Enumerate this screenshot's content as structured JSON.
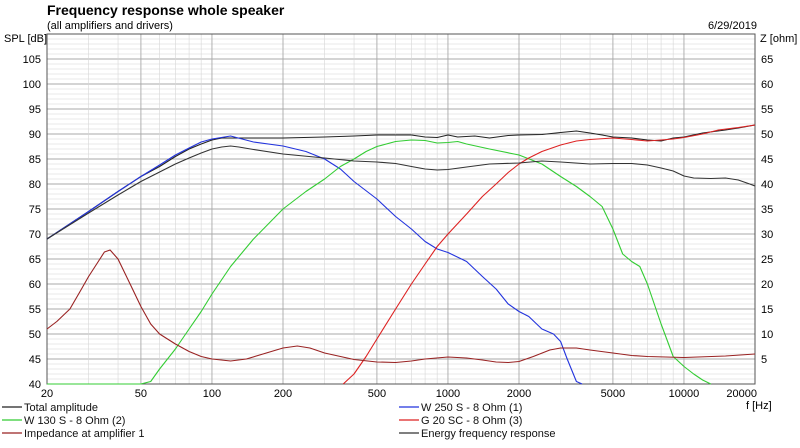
{
  "chart_data": {
    "type": "line",
    "title": "Frequency response whole speaker",
    "subtitle": "(all amplifiers and drivers)",
    "date": "6/29/2019",
    "ylabel_left": "SPL [dB]",
    "ylabel_right": "Z [ohm]",
    "xlabel": "f [Hz]",
    "x_scale": "log",
    "xlim": [
      20,
      20000
    ],
    "ylim_left": [
      40,
      110
    ],
    "ylim_right": [
      0,
      70
    ],
    "x_ticks": [
      20,
      50,
      100,
      200,
      500,
      1000,
      2000,
      5000,
      10000,
      20000
    ],
    "x_tick_labels": [
      "20",
      "50",
      "100",
      "200",
      "500",
      "1000",
      "2000",
      "5000",
      "10000",
      "20000"
    ],
    "y_left_ticks": [
      40,
      45,
      50,
      55,
      60,
      65,
      70,
      75,
      80,
      85,
      90,
      95,
      100,
      105
    ],
    "y_left_tick_labels": [
      "40",
      "45",
      "50",
      "55",
      "60",
      "65",
      "70",
      "75",
      "80",
      "85",
      "90",
      "95",
      "100",
      "105"
    ],
    "y_right_ticks": [
      5,
      10,
      15,
      20,
      25,
      30,
      35,
      40,
      45,
      50,
      55,
      60,
      65
    ],
    "y_right_tick_labels": [
      "5",
      "10",
      "15",
      "20",
      "25",
      "30",
      "35",
      "40",
      "45",
      "50",
      "55",
      "60",
      "65"
    ],
    "grid": true,
    "legend_position": "bottom",
    "series": [
      {
        "name": "Total amplitude",
        "color": "#222222",
        "axis": "left",
        "points": [
          [
            20,
            69
          ],
          [
            30,
            74.5
          ],
          [
            40,
            78.5
          ],
          [
            50,
            81.5
          ],
          [
            60,
            83.5
          ],
          [
            70,
            85.5
          ],
          [
            80,
            87
          ],
          [
            90,
            88
          ],
          [
            100,
            88.8
          ],
          [
            110,
            89.2
          ],
          [
            130,
            89.2
          ],
          [
            150,
            89.2
          ],
          [
            200,
            89.2
          ],
          [
            300,
            89.4
          ],
          [
            400,
            89.6
          ],
          [
            500,
            89.8
          ],
          [
            700,
            89.8
          ],
          [
            800,
            89.4
          ],
          [
            900,
            89.3
          ],
          [
            1000,
            89.8
          ],
          [
            1100,
            89.4
          ],
          [
            1300,
            89.6
          ],
          [
            1500,
            89.2
          ],
          [
            1800,
            89.7
          ],
          [
            2000,
            89.8
          ],
          [
            2500,
            89.9
          ],
          [
            3000,
            90.3
          ],
          [
            3500,
            90.6
          ],
          [
            4000,
            90.2
          ],
          [
            4500,
            89.8
          ],
          [
            5000,
            89.4
          ],
          [
            6000,
            89.2
          ],
          [
            7000,
            88.8
          ],
          [
            8000,
            88.6
          ],
          [
            9000,
            89.2
          ],
          [
            10000,
            89.4
          ],
          [
            12000,
            90.2
          ],
          [
            15000,
            90.8
          ],
          [
            17000,
            91.2
          ],
          [
            20000,
            91.8
          ]
        ]
      },
      {
        "name": "W 250 S - 8 Ohm  (1)",
        "color": "#2233dd",
        "axis": "left",
        "points": [
          [
            20,
            69
          ],
          [
            30,
            74.5
          ],
          [
            40,
            78.5
          ],
          [
            50,
            81.5
          ],
          [
            60,
            83.8
          ],
          [
            70,
            85.8
          ],
          [
            80,
            87.2
          ],
          [
            90,
            88.4
          ],
          [
            100,
            89
          ],
          [
            120,
            89.6
          ],
          [
            150,
            88.4
          ],
          [
            200,
            87.6
          ],
          [
            250,
            86.5
          ],
          [
            300,
            85
          ],
          [
            350,
            83
          ],
          [
            400,
            80.5
          ],
          [
            500,
            77
          ],
          [
            600,
            73.5
          ],
          [
            700,
            71
          ],
          [
            800,
            68.5
          ],
          [
            900,
            67
          ],
          [
            1000,
            66.3
          ],
          [
            1200,
            64.5
          ],
          [
            1400,
            61.5
          ],
          [
            1600,
            59
          ],
          [
            1800,
            56
          ],
          [
            2000,
            54.5
          ],
          [
            2200,
            53.5
          ],
          [
            2500,
            51
          ],
          [
            2800,
            50
          ],
          [
            3000,
            48.5
          ],
          [
            3200,
            45
          ],
          [
            3500,
            40.5
          ],
          [
            3700,
            40
          ]
        ]
      },
      {
        "name": "W 130 S - 8 Ohm (2)",
        "color": "#33cc33",
        "axis": "left",
        "points": [
          [
            20,
            40
          ],
          [
            50,
            40
          ],
          [
            55,
            40.5
          ],
          [
            60,
            43
          ],
          [
            70,
            47
          ],
          [
            80,
            51
          ],
          [
            90,
            54.5
          ],
          [
            100,
            58
          ],
          [
            120,
            63.5
          ],
          [
            150,
            69
          ],
          [
            200,
            75
          ],
          [
            250,
            78.5
          ],
          [
            300,
            81
          ],
          [
            350,
            83.5
          ],
          [
            400,
            85
          ],
          [
            450,
            86.5
          ],
          [
            500,
            87.5
          ],
          [
            600,
            88.5
          ],
          [
            700,
            88.8
          ],
          [
            800,
            88.7
          ],
          [
            900,
            88.2
          ],
          [
            1000,
            88.3
          ],
          [
            1100,
            88.5
          ],
          [
            1200,
            88
          ],
          [
            1500,
            87
          ],
          [
            2000,
            85.8
          ],
          [
            2500,
            84
          ],
          [
            3000,
            81.5
          ],
          [
            3500,
            79.5
          ],
          [
            4000,
            77.5
          ],
          [
            4500,
            75.5
          ],
          [
            5000,
            71
          ],
          [
            5500,
            66
          ],
          [
            6000,
            64.5
          ],
          [
            6500,
            63.5
          ],
          [
            7000,
            60
          ],
          [
            8000,
            52
          ],
          [
            9000,
            45.5
          ],
          [
            10000,
            43.5
          ],
          [
            11000,
            42
          ],
          [
            12000,
            40.8
          ],
          [
            13000,
            40
          ]
        ]
      },
      {
        "name": "G 20 SC - 8 Ohm (3)",
        "color": "#dd2222",
        "axis": "left",
        "points": [
          [
            360,
            40
          ],
          [
            400,
            42
          ],
          [
            450,
            45.5
          ],
          [
            500,
            49
          ],
          [
            600,
            55
          ],
          [
            700,
            60
          ],
          [
            800,
            64
          ],
          [
            900,
            67.5
          ],
          [
            1000,
            70
          ],
          [
            1200,
            74
          ],
          [
            1400,
            77.5
          ],
          [
            1600,
            80
          ],
          [
            1800,
            82.3
          ],
          [
            2000,
            84
          ],
          [
            2200,
            85.2
          ],
          [
            2500,
            86.5
          ],
          [
            3000,
            87.8
          ],
          [
            3500,
            88.6
          ],
          [
            4000,
            88.9
          ],
          [
            5000,
            89.2
          ],
          [
            6000,
            88.9
          ],
          [
            7000,
            88.6
          ],
          [
            8000,
            88.8
          ],
          [
            9000,
            89
          ],
          [
            10000,
            89.3
          ],
          [
            12000,
            90
          ],
          [
            14000,
            90.8
          ],
          [
            17000,
            91.3
          ],
          [
            20000,
            91.8
          ]
        ]
      },
      {
        "name": "Impedance at amplifier 1",
        "color": "#992222",
        "axis": "right",
        "points": [
          [
            20,
            11
          ],
          [
            22,
            12.5
          ],
          [
            25,
            15
          ],
          [
            28,
            19
          ],
          [
            30,
            21.5
          ],
          [
            33,
            24.5
          ],
          [
            35,
            26.4
          ],
          [
            37,
            26.8
          ],
          [
            40,
            25
          ],
          [
            45,
            20
          ],
          [
            50,
            15.5
          ],
          [
            55,
            12
          ],
          [
            60,
            10
          ],
          [
            70,
            8
          ],
          [
            80,
            6.5
          ],
          [
            90,
            5.5
          ],
          [
            100,
            5
          ],
          [
            120,
            4.6
          ],
          [
            140,
            5
          ],
          [
            170,
            6.2
          ],
          [
            200,
            7.2
          ],
          [
            230,
            7.6
          ],
          [
            260,
            7.2
          ],
          [
            300,
            6.2
          ],
          [
            400,
            4.9
          ],
          [
            500,
            4.4
          ],
          [
            600,
            4.3
          ],
          [
            700,
            4.6
          ],
          [
            800,
            5
          ],
          [
            1000,
            5.4
          ],
          [
            1200,
            5.2
          ],
          [
            1400,
            4.8
          ],
          [
            1600,
            4.4
          ],
          [
            1800,
            4.3
          ],
          [
            2000,
            4.5
          ],
          [
            2300,
            5.5
          ],
          [
            2700,
            6.8
          ],
          [
            3000,
            7.2
          ],
          [
            3500,
            7.2
          ],
          [
            4000,
            6.8
          ],
          [
            5000,
            6.2
          ],
          [
            6000,
            5.7
          ],
          [
            7000,
            5.5
          ],
          [
            10000,
            5.3
          ],
          [
            15000,
            5.6
          ],
          [
            20000,
            6
          ]
        ]
      },
      {
        "name": "Energy frequency response",
        "color": "#333333",
        "axis": "left",
        "points": [
          [
            20,
            69
          ],
          [
            30,
            74.2
          ],
          [
            40,
            77.8
          ],
          [
            50,
            80.5
          ],
          [
            60,
            82.4
          ],
          [
            70,
            84
          ],
          [
            80,
            85.2
          ],
          [
            90,
            86.2
          ],
          [
            100,
            87
          ],
          [
            110,
            87.4
          ],
          [
            120,
            87.6
          ],
          [
            130,
            87.4
          ],
          [
            150,
            86.9
          ],
          [
            200,
            86
          ],
          [
            300,
            85.2
          ],
          [
            400,
            84.6
          ],
          [
            500,
            84.4
          ],
          [
            600,
            84.1
          ],
          [
            700,
            83.5
          ],
          [
            800,
            83
          ],
          [
            900,
            82.8
          ],
          [
            1000,
            82.9
          ],
          [
            1200,
            83.4
          ],
          [
            1500,
            84
          ],
          [
            2000,
            84.2
          ],
          [
            2500,
            84.6
          ],
          [
            3000,
            84.4
          ],
          [
            4000,
            84
          ],
          [
            5000,
            84.1
          ],
          [
            6000,
            84.1
          ],
          [
            7000,
            83.8
          ],
          [
            8000,
            83.2
          ],
          [
            9000,
            82.6
          ],
          [
            10000,
            81.6
          ],
          [
            11000,
            81.2
          ],
          [
            13000,
            81.1
          ],
          [
            15000,
            81.2
          ],
          [
            17000,
            80.8
          ],
          [
            19000,
            80
          ],
          [
            20000,
            79.6
          ]
        ]
      }
    ]
  }
}
